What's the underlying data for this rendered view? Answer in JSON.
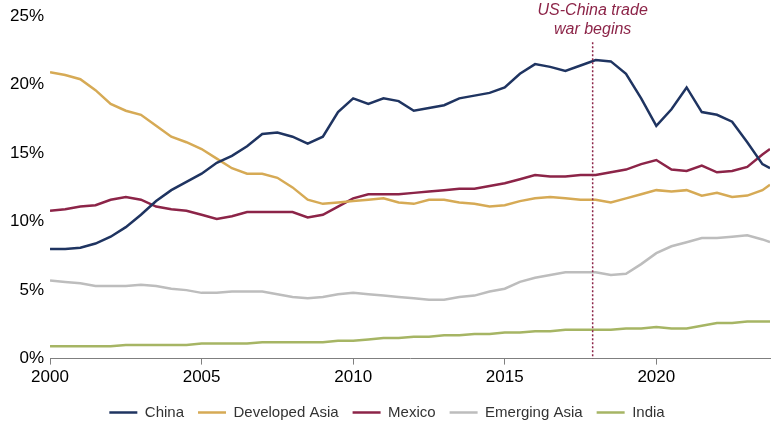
{
  "chart_data": {
    "type": "line",
    "x": [
      2000,
      2000.5,
      2001,
      2001.5,
      2002,
      2002.5,
      2003,
      2003.5,
      2004,
      2004.5,
      2005,
      2005.5,
      2006,
      2006.5,
      2007,
      2007.5,
      2008,
      2008.5,
      2009,
      2009.5,
      2010,
      2010.5,
      2011,
      2011.5,
      2012,
      2012.5,
      2013,
      2013.5,
      2014,
      2014.5,
      2015,
      2015.5,
      2016,
      2016.5,
      2017,
      2017.5,
      2018,
      2018.5,
      2019,
      2019.5,
      2020,
      2020.5,
      2021,
      2021.5,
      2022,
      2022.5,
      2023,
      2023.5,
      2023.75
    ],
    "series": [
      {
        "name": "China",
        "color": "#1f3461",
        "values": [
          8.0,
          8.0,
          8.1,
          8.4,
          8.9,
          9.6,
          10.5,
          11.5,
          12.3,
          12.9,
          13.5,
          14.3,
          14.8,
          15.5,
          16.4,
          16.5,
          16.2,
          15.7,
          16.2,
          18.0,
          19.0,
          18.6,
          19.0,
          18.8,
          18.1,
          18.3,
          18.5,
          19.0,
          19.2,
          19.4,
          19.8,
          20.8,
          21.5,
          21.3,
          21.0,
          21.4,
          21.8,
          21.7,
          20.8,
          19.0,
          17.0,
          18.2,
          19.8,
          18.0,
          17.8,
          17.3,
          15.8,
          14.2,
          13.9
        ]
      },
      {
        "name": "Developed Asia",
        "color": "#d6aa55",
        "values": [
          20.9,
          20.7,
          20.4,
          19.6,
          18.6,
          18.1,
          17.8,
          17.0,
          16.2,
          15.8,
          15.3,
          14.6,
          13.9,
          13.5,
          13.5,
          13.2,
          12.5,
          11.6,
          11.3,
          11.4,
          11.5,
          11.6,
          11.7,
          11.4,
          11.3,
          11.6,
          11.6,
          11.4,
          11.3,
          11.1,
          11.2,
          11.5,
          11.7,
          11.8,
          11.7,
          11.6,
          11.6,
          11.4,
          11.7,
          12.0,
          12.3,
          12.2,
          12.3,
          11.9,
          12.1,
          11.8,
          11.9,
          12.3,
          12.7
        ]
      },
      {
        "name": "Mexico",
        "color": "#8c2448",
        "values": [
          10.8,
          10.9,
          11.1,
          11.2,
          11.6,
          11.8,
          11.6,
          11.1,
          10.9,
          10.8,
          10.5,
          10.2,
          10.4,
          10.7,
          10.7,
          10.7,
          10.7,
          10.3,
          10.5,
          11.1,
          11.7,
          12.0,
          12.0,
          12.0,
          12.1,
          12.2,
          12.3,
          12.4,
          12.4,
          12.6,
          12.8,
          13.1,
          13.4,
          13.3,
          13.3,
          13.4,
          13.4,
          13.6,
          13.8,
          14.2,
          14.5,
          13.8,
          13.7,
          14.1,
          13.6,
          13.7,
          14.0,
          14.9,
          15.3
        ]
      },
      {
        "name": "Emerging Asia",
        "color": "#bdbdbd",
        "values": [
          5.7,
          5.6,
          5.5,
          5.3,
          5.3,
          5.3,
          5.4,
          5.3,
          5.1,
          5.0,
          4.8,
          4.8,
          4.9,
          4.9,
          4.9,
          4.7,
          4.5,
          4.4,
          4.5,
          4.7,
          4.8,
          4.7,
          4.6,
          4.5,
          4.4,
          4.3,
          4.3,
          4.5,
          4.6,
          4.9,
          5.1,
          5.6,
          5.9,
          6.1,
          6.3,
          6.3,
          6.3,
          6.1,
          6.2,
          6.9,
          7.7,
          8.2,
          8.5,
          8.8,
          8.8,
          8.9,
          9.0,
          8.7,
          8.5
        ]
      },
      {
        "name": "India",
        "color": "#a6b564",
        "values": [
          0.9,
          0.9,
          0.9,
          0.9,
          0.9,
          1.0,
          1.0,
          1.0,
          1.0,
          1.0,
          1.1,
          1.1,
          1.1,
          1.1,
          1.2,
          1.2,
          1.2,
          1.2,
          1.2,
          1.3,
          1.3,
          1.4,
          1.5,
          1.5,
          1.6,
          1.6,
          1.7,
          1.7,
          1.8,
          1.8,
          1.9,
          1.9,
          2.0,
          2.0,
          2.1,
          2.1,
          2.1,
          2.1,
          2.2,
          2.2,
          2.3,
          2.2,
          2.2,
          2.4,
          2.6,
          2.6,
          2.7,
          2.7,
          2.7
        ]
      }
    ],
    "xlim": [
      2000,
      2023.75
    ],
    "xticks": [
      2000,
      2005,
      2010,
      2015,
      2020
    ],
    "ylim": [
      0,
      25
    ],
    "yticks": [
      {
        "value": 0,
        "label": "0%"
      },
      {
        "value": 5,
        "label": "5%"
      },
      {
        "value": 10,
        "label": "10%"
      },
      {
        "value": 15,
        "label": "15%"
      },
      {
        "value": 20,
        "label": "20%"
      },
      {
        "value": 25,
        "label": "25%"
      }
    ],
    "annotations": [
      {
        "x": 2017.9,
        "text": [
          "US-China trade",
          "war begins"
        ],
        "color": "#8c2448"
      }
    ],
    "grid": false,
    "legend": "bottom"
  }
}
